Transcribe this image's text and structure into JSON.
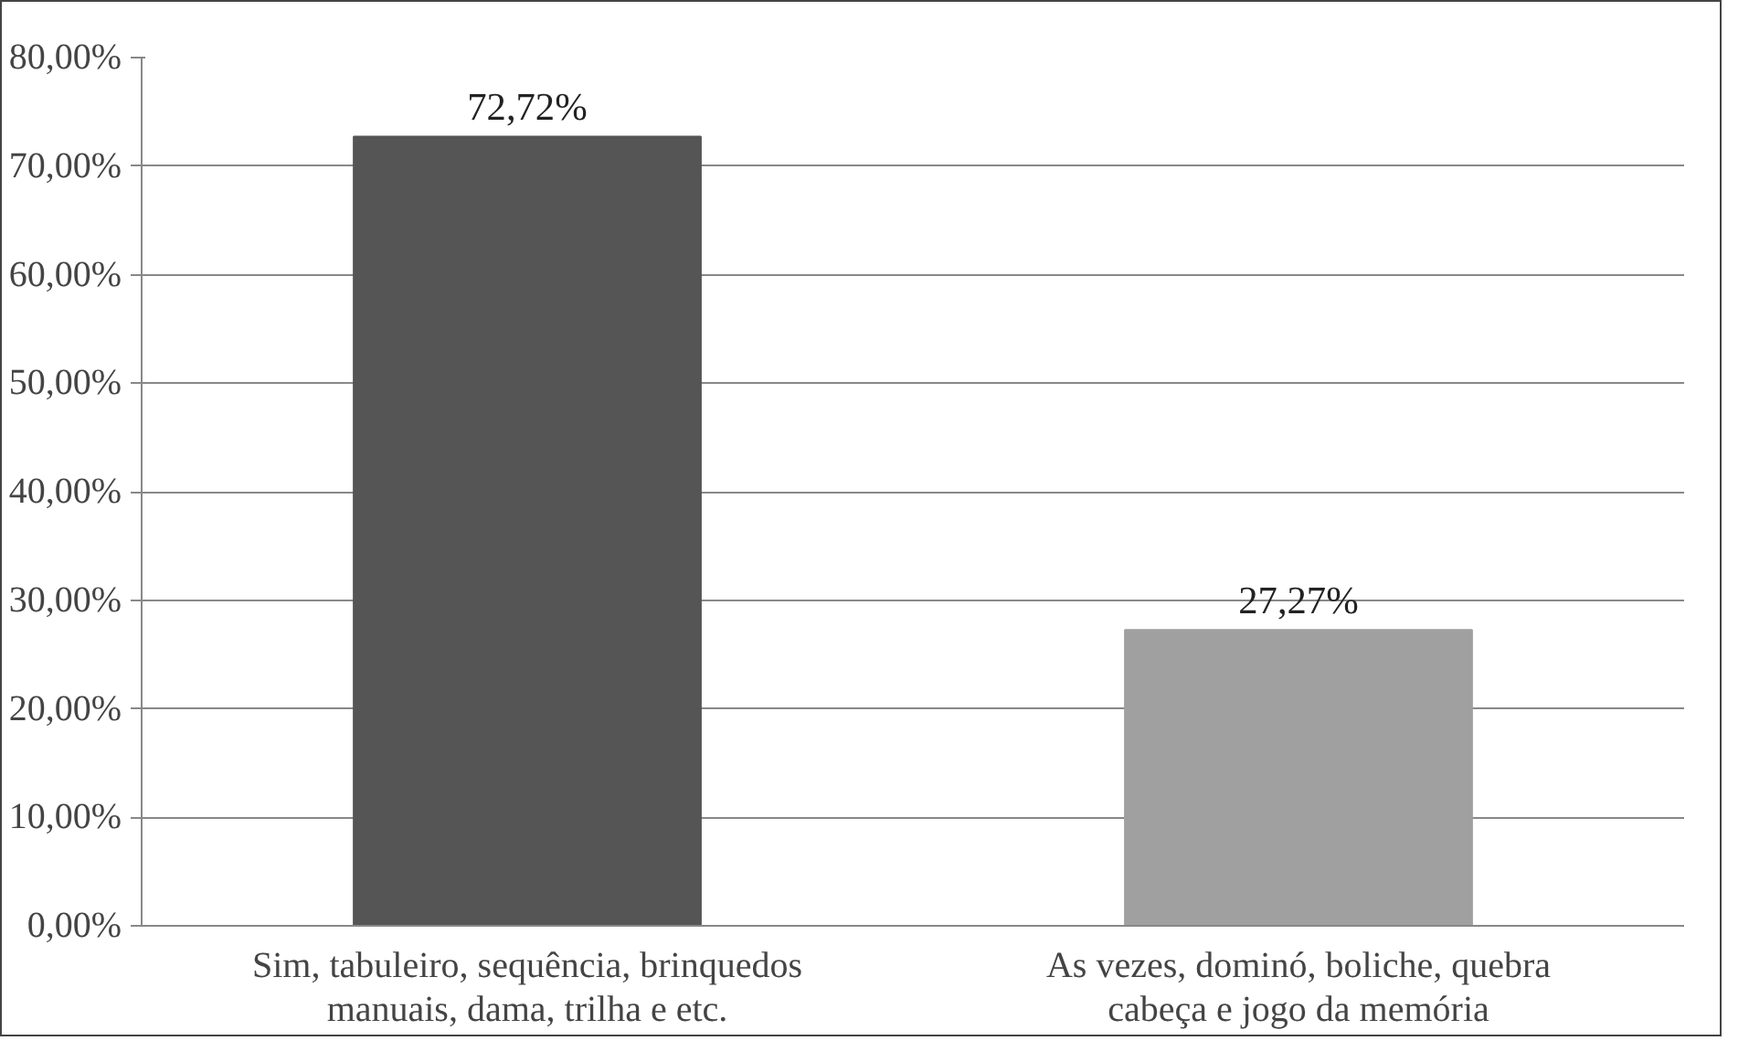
{
  "chart_data": {
    "type": "bar",
    "categories": [
      "Sim, tabuleiro, sequência, brinquedos\nmanuais, dama, trilha e etc.",
      "As vezes, dominó, boliche, quebra\ncabeça e jogo da memória"
    ],
    "values": [
      72.72,
      27.27
    ],
    "value_labels": [
      "72,72%",
      "27,27%"
    ],
    "colors": [
      "#555555",
      "#a0a0a0"
    ],
    "ylim": [
      0,
      80
    ],
    "yticks": [
      {
        "value": 0,
        "label": "0,00%"
      },
      {
        "value": 10,
        "label": "10,00%"
      },
      {
        "value": 20,
        "label": "20,00%"
      },
      {
        "value": 30,
        "label": "30,00%"
      },
      {
        "value": 40,
        "label": "40,00%"
      },
      {
        "value": 50,
        "label": "50,00%"
      },
      {
        "value": 60,
        "label": "60,00%"
      },
      {
        "value": 70,
        "label": "70,00%"
      },
      {
        "value": 80,
        "label": "80,00%"
      }
    ],
    "grid": "y"
  }
}
